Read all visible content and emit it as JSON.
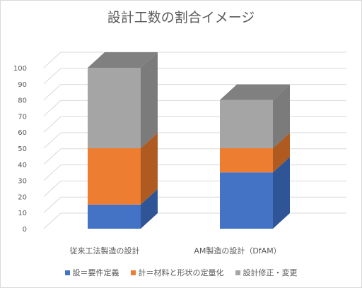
{
  "chart_data": {
    "type": "bar",
    "stacked": true,
    "three_d": true,
    "title": "設計工数の割合イメージ",
    "categories": [
      "従来工法製造の設計",
      "AM製造の設計（DfAM）"
    ],
    "series": [
      {
        "name": "設＝要件定義",
        "values": [
          15,
          35
        ],
        "color": "#4472c4",
        "side_color": "#2f5597"
      },
      {
        "name": "計＝材料と形状の定量化",
        "values": [
          35,
          15
        ],
        "color": "#ed7d31",
        "side_color": "#ae5a21"
      },
      {
        "name": "設計修正・変更",
        "values": [
          50,
          30
        ],
        "color": "#a5a5a5",
        "side_color": "#7b7b7b"
      }
    ],
    "top_color": "#808080",
    "ylim": [
      0,
      100
    ],
    "yticks": [
      "0",
      "10",
      "20",
      "30",
      "40",
      "50",
      "60",
      "70",
      "80",
      "90",
      "100"
    ],
    "grid": true,
    "legend_position": "bottom"
  }
}
